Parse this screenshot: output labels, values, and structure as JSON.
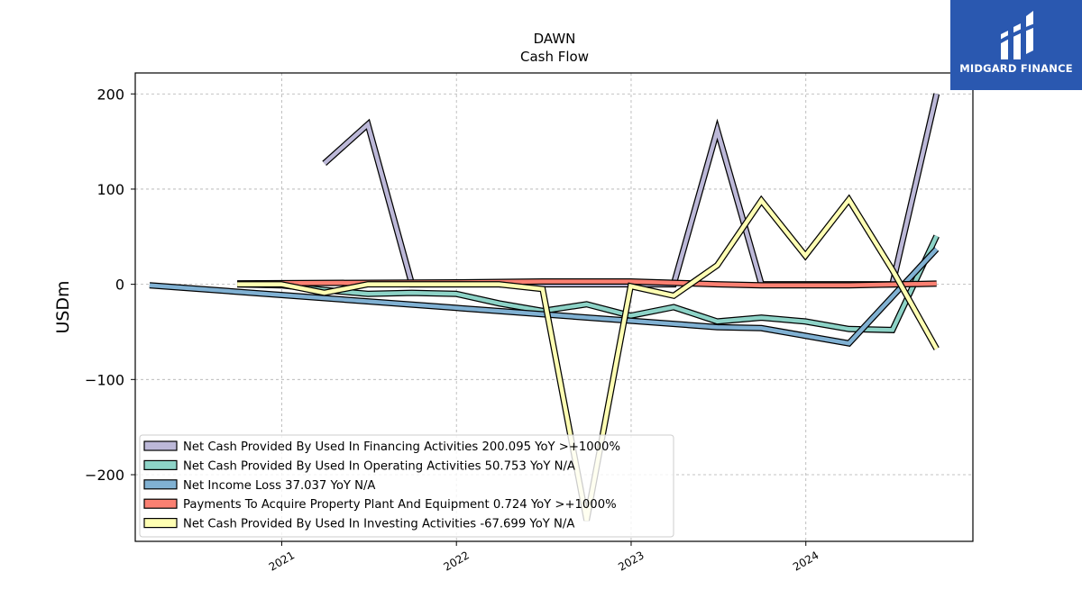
{
  "brand": {
    "name": "MIDGARD FINANCE",
    "color": "#2a58b0"
  },
  "chart_data": {
    "type": "line",
    "title": "DAWN",
    "subtitle": "Cash Flow",
    "xlabel": "",
    "ylabel": "USDm",
    "xlim": [
      "2020-03-01",
      "2024-12-15"
    ],
    "ylim": [
      -270,
      222
    ],
    "yticks": [
      -200,
      -100,
      0,
      100,
      200
    ],
    "ytick_labels": [
      "−200",
      "−100",
      "0",
      "100",
      "200"
    ],
    "xticks": [
      "2021-01-01",
      "2022-01-01",
      "2023-01-01",
      "2024-01-01"
    ],
    "xtick_labels": [
      "2021",
      "2022",
      "2023",
      "2024"
    ],
    "grid": true,
    "legend_position": "bottom-left",
    "series": [
      {
        "name": "Net Cash Provided By Used In Financing Activities",
        "legend": "Net Cash Provided By Used In Financing Activities  200.095 YoY >+1000%",
        "color": "#bcb8d8",
        "x": [
          "2021-03-31",
          "2021-06-30",
          "2021-09-30",
          "2022-06-30",
          "2022-09-30",
          "2022-12-31",
          "2023-03-31",
          "2023-06-30",
          "2023-09-30",
          "2024-06-30",
          "2024-09-30"
        ],
        "values": [
          127,
          168,
          0,
          0,
          0,
          0,
          0,
          162,
          0,
          0,
          200.095
        ]
      },
      {
        "name": "Net Cash Provided By Used In Operating Activities",
        "legend": "Net Cash Provided By Used In Operating Activities  50.753 YoY N/A",
        "color": "#8dd3c7",
        "x": [
          "2020-09-30",
          "2020-12-31",
          "2021-03-31",
          "2021-06-30",
          "2021-09-30",
          "2021-12-31",
          "2022-03-31",
          "2022-06-30",
          "2022-09-30",
          "2022-12-31",
          "2023-03-31",
          "2023-06-30",
          "2023-09-30",
          "2023-12-31",
          "2024-03-31",
          "2024-06-30",
          "2024-09-30"
        ],
        "values": [
          0,
          -1,
          -6,
          -10,
          -9,
          -10,
          -20,
          -28,
          -21,
          -33,
          -24,
          -39,
          -35,
          -39,
          -47,
          -48,
          50.753
        ]
      },
      {
        "name": "Net Income Loss",
        "legend": "Net Income Loss  37.037 YoY N/A",
        "color": "#80b1d3",
        "x": [
          "2020-03-31",
          "2023-06-30",
          "2023-09-30",
          "2024-03-31",
          "2024-09-30"
        ],
        "values": [
          -1,
          -45,
          -46,
          -62,
          37.037
        ]
      },
      {
        "name": "Payments To Acquire Property Plant And Equipment",
        "legend": "Payments To Acquire Property Plant And Equipment  0.724 YoY >+1000%",
        "color": "#fb8072",
        "x": [
          "2020-09-30",
          "2021-12-31",
          "2022-06-30",
          "2022-12-31",
          "2023-06-30",
          "2023-09-30",
          "2024-03-31",
          "2024-09-30"
        ],
        "values": [
          1,
          2,
          3,
          3,
          0,
          -1,
          -1,
          0.724
        ]
      },
      {
        "name": "Net Cash Provided By Used In Investing Activities",
        "legend": "Net Cash Provided By Used In Investing Activities  -67.699 YoY N/A",
        "color": "#ffffb3",
        "x": [
          "2020-09-30",
          "2020-12-31",
          "2021-03-31",
          "2021-06-30",
          "2021-09-30",
          "2021-12-31",
          "2022-03-31",
          "2022-06-30",
          "2022-09-30",
          "2022-12-31",
          "2023-03-31",
          "2023-06-30",
          "2023-09-30",
          "2023-12-31",
          "2024-03-31",
          "2024-06-30",
          "2024-09-30"
        ],
        "values": [
          0,
          0,
          -9,
          0,
          0,
          0,
          0,
          -5,
          -248,
          -2,
          -12,
          20,
          88,
          30,
          89,
          15,
          -67.699
        ]
      }
    ]
  }
}
